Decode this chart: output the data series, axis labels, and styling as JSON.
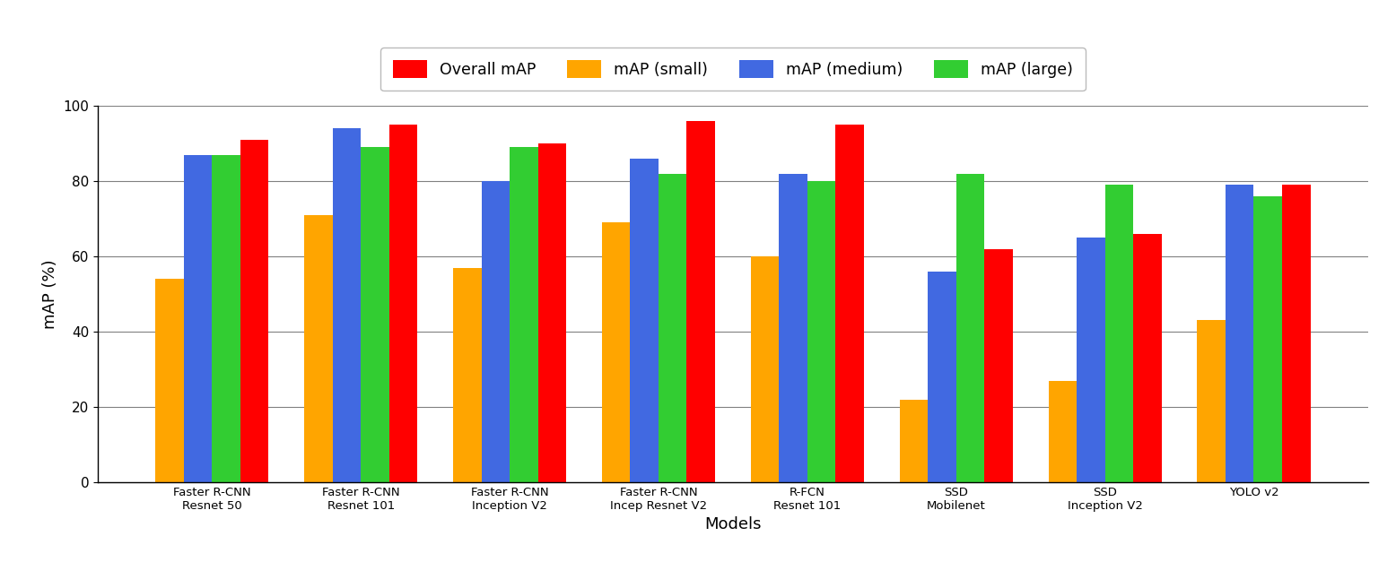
{
  "models": [
    "Faster R-CNN\nResnet 50",
    "Faster R-CNN\nResnet 101",
    "Faster R-CNN\nInception V2",
    "Faster R-CNN\nIncep Resnet V2",
    "R-FCN\nResnet 101",
    "SSD\nMobilenet",
    "SSD\nInception V2",
    "YOLO v2"
  ],
  "overall_mAP": [
    91,
    95,
    90,
    96,
    95,
    62,
    66,
    79
  ],
  "mAP_small": [
    54,
    71,
    57,
    69,
    60,
    22,
    27,
    43
  ],
  "mAP_medium": [
    87,
    94,
    80,
    86,
    82,
    56,
    65,
    79
  ],
  "mAP_large": [
    87,
    89,
    89,
    82,
    80,
    82,
    79,
    76
  ],
  "colors": {
    "overall": "#ff0000",
    "small": "#ffa500",
    "medium": "#4169e1",
    "large": "#32cd32"
  },
  "legend_labels": [
    "Overall mAP",
    "mAP (small)",
    "mAP (medium)",
    "mAP (large)"
  ],
  "xlabel": "Models",
  "ylabel": "mAP (%)",
  "ylim": [
    0,
    100
  ],
  "yticks": [
    0,
    20,
    40,
    60,
    80,
    100
  ],
  "bar_width": 0.19,
  "figsize": [
    15.56,
    6.56
  ],
  "dpi": 100
}
